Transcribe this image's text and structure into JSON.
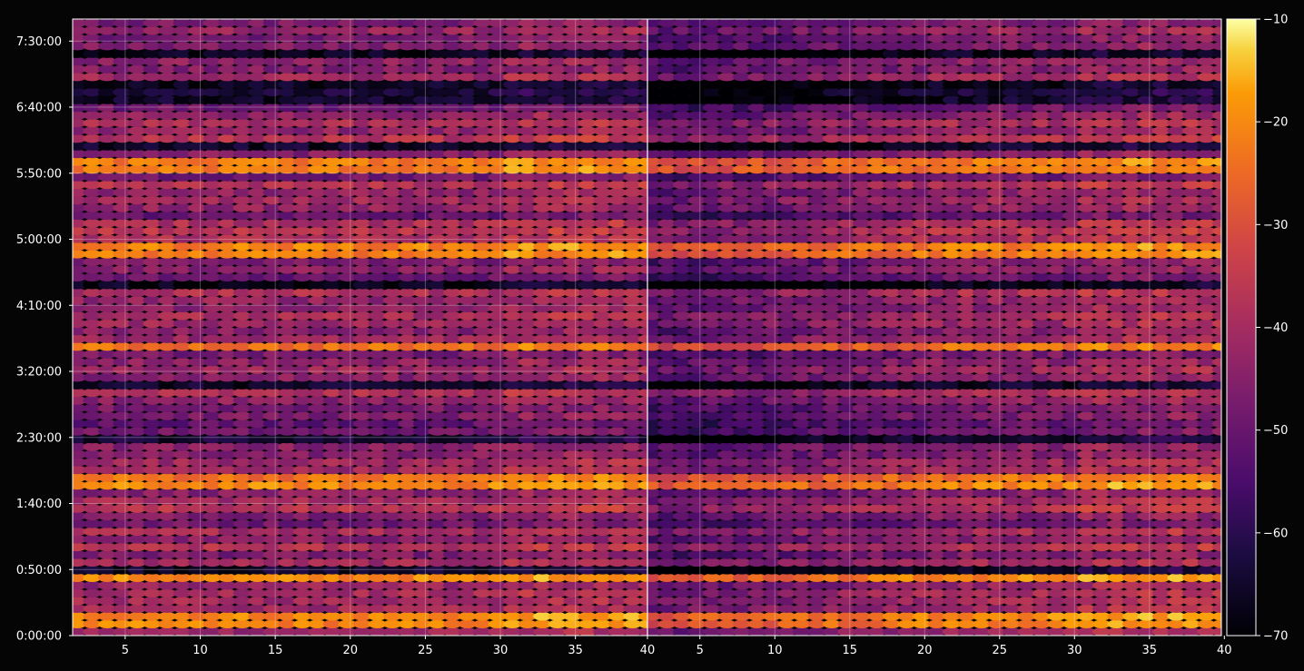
{
  "chart_data": {
    "type": "heatmap",
    "title": "",
    "xlabel": "",
    "ylabel": "",
    "panels": [
      {
        "name": "left",
        "xlim": [
          1.5,
          39.8
        ],
        "xticks": [
          5,
          10,
          15,
          20,
          25,
          30,
          35
        ],
        "xtick_labels": [
          "5",
          "10",
          "15",
          "20",
          "25",
          "30",
          "35"
        ]
      },
      {
        "name": "right",
        "xlim": [
          1.5,
          39.8
        ],
        "xticks": [
          5,
          10,
          15,
          20,
          25,
          30,
          35,
          40
        ],
        "xtick_labels": [
          "5",
          "10",
          "15",
          "20",
          "25",
          "30",
          "35",
          "40"
        ]
      }
    ],
    "shared_xtick_label_40": "40",
    "ylim_seconds": [
      0,
      28000
    ],
    "yticks_seconds": [
      0,
      3000,
      6000,
      9000,
      12000,
      15000,
      18000,
      21000,
      24000,
      27000
    ],
    "ytick_labels": [
      "0:00:00",
      "0:50:00",
      "1:40:00",
      "2:30:00",
      "3:20:00",
      "4:10:00",
      "5:00:00",
      "5:50:00",
      "6:40:00",
      "7:30:00"
    ],
    "grid": true,
    "colormap": "inferno",
    "colorbar": {
      "min": -70,
      "max": -10,
      "ticks": [
        -10,
        -20,
        -30,
        -40,
        -50,
        -60,
        -70
      ],
      "tick_labels": [
        "−10",
        "−20",
        "−30",
        "−40",
        "−50",
        "−60",
        "−70"
      ]
    },
    "rows_per_panel": 80,
    "columns_per_panel": 39,
    "value_range_shown": [
      -70,
      -10
    ],
    "notable_bright_bands_seconds": [
      700,
      2700,
      6800,
      7000,
      13200,
      17500,
      21300
    ],
    "colors": {
      "background": "#050505",
      "axes": "#ffffff"
    }
  }
}
